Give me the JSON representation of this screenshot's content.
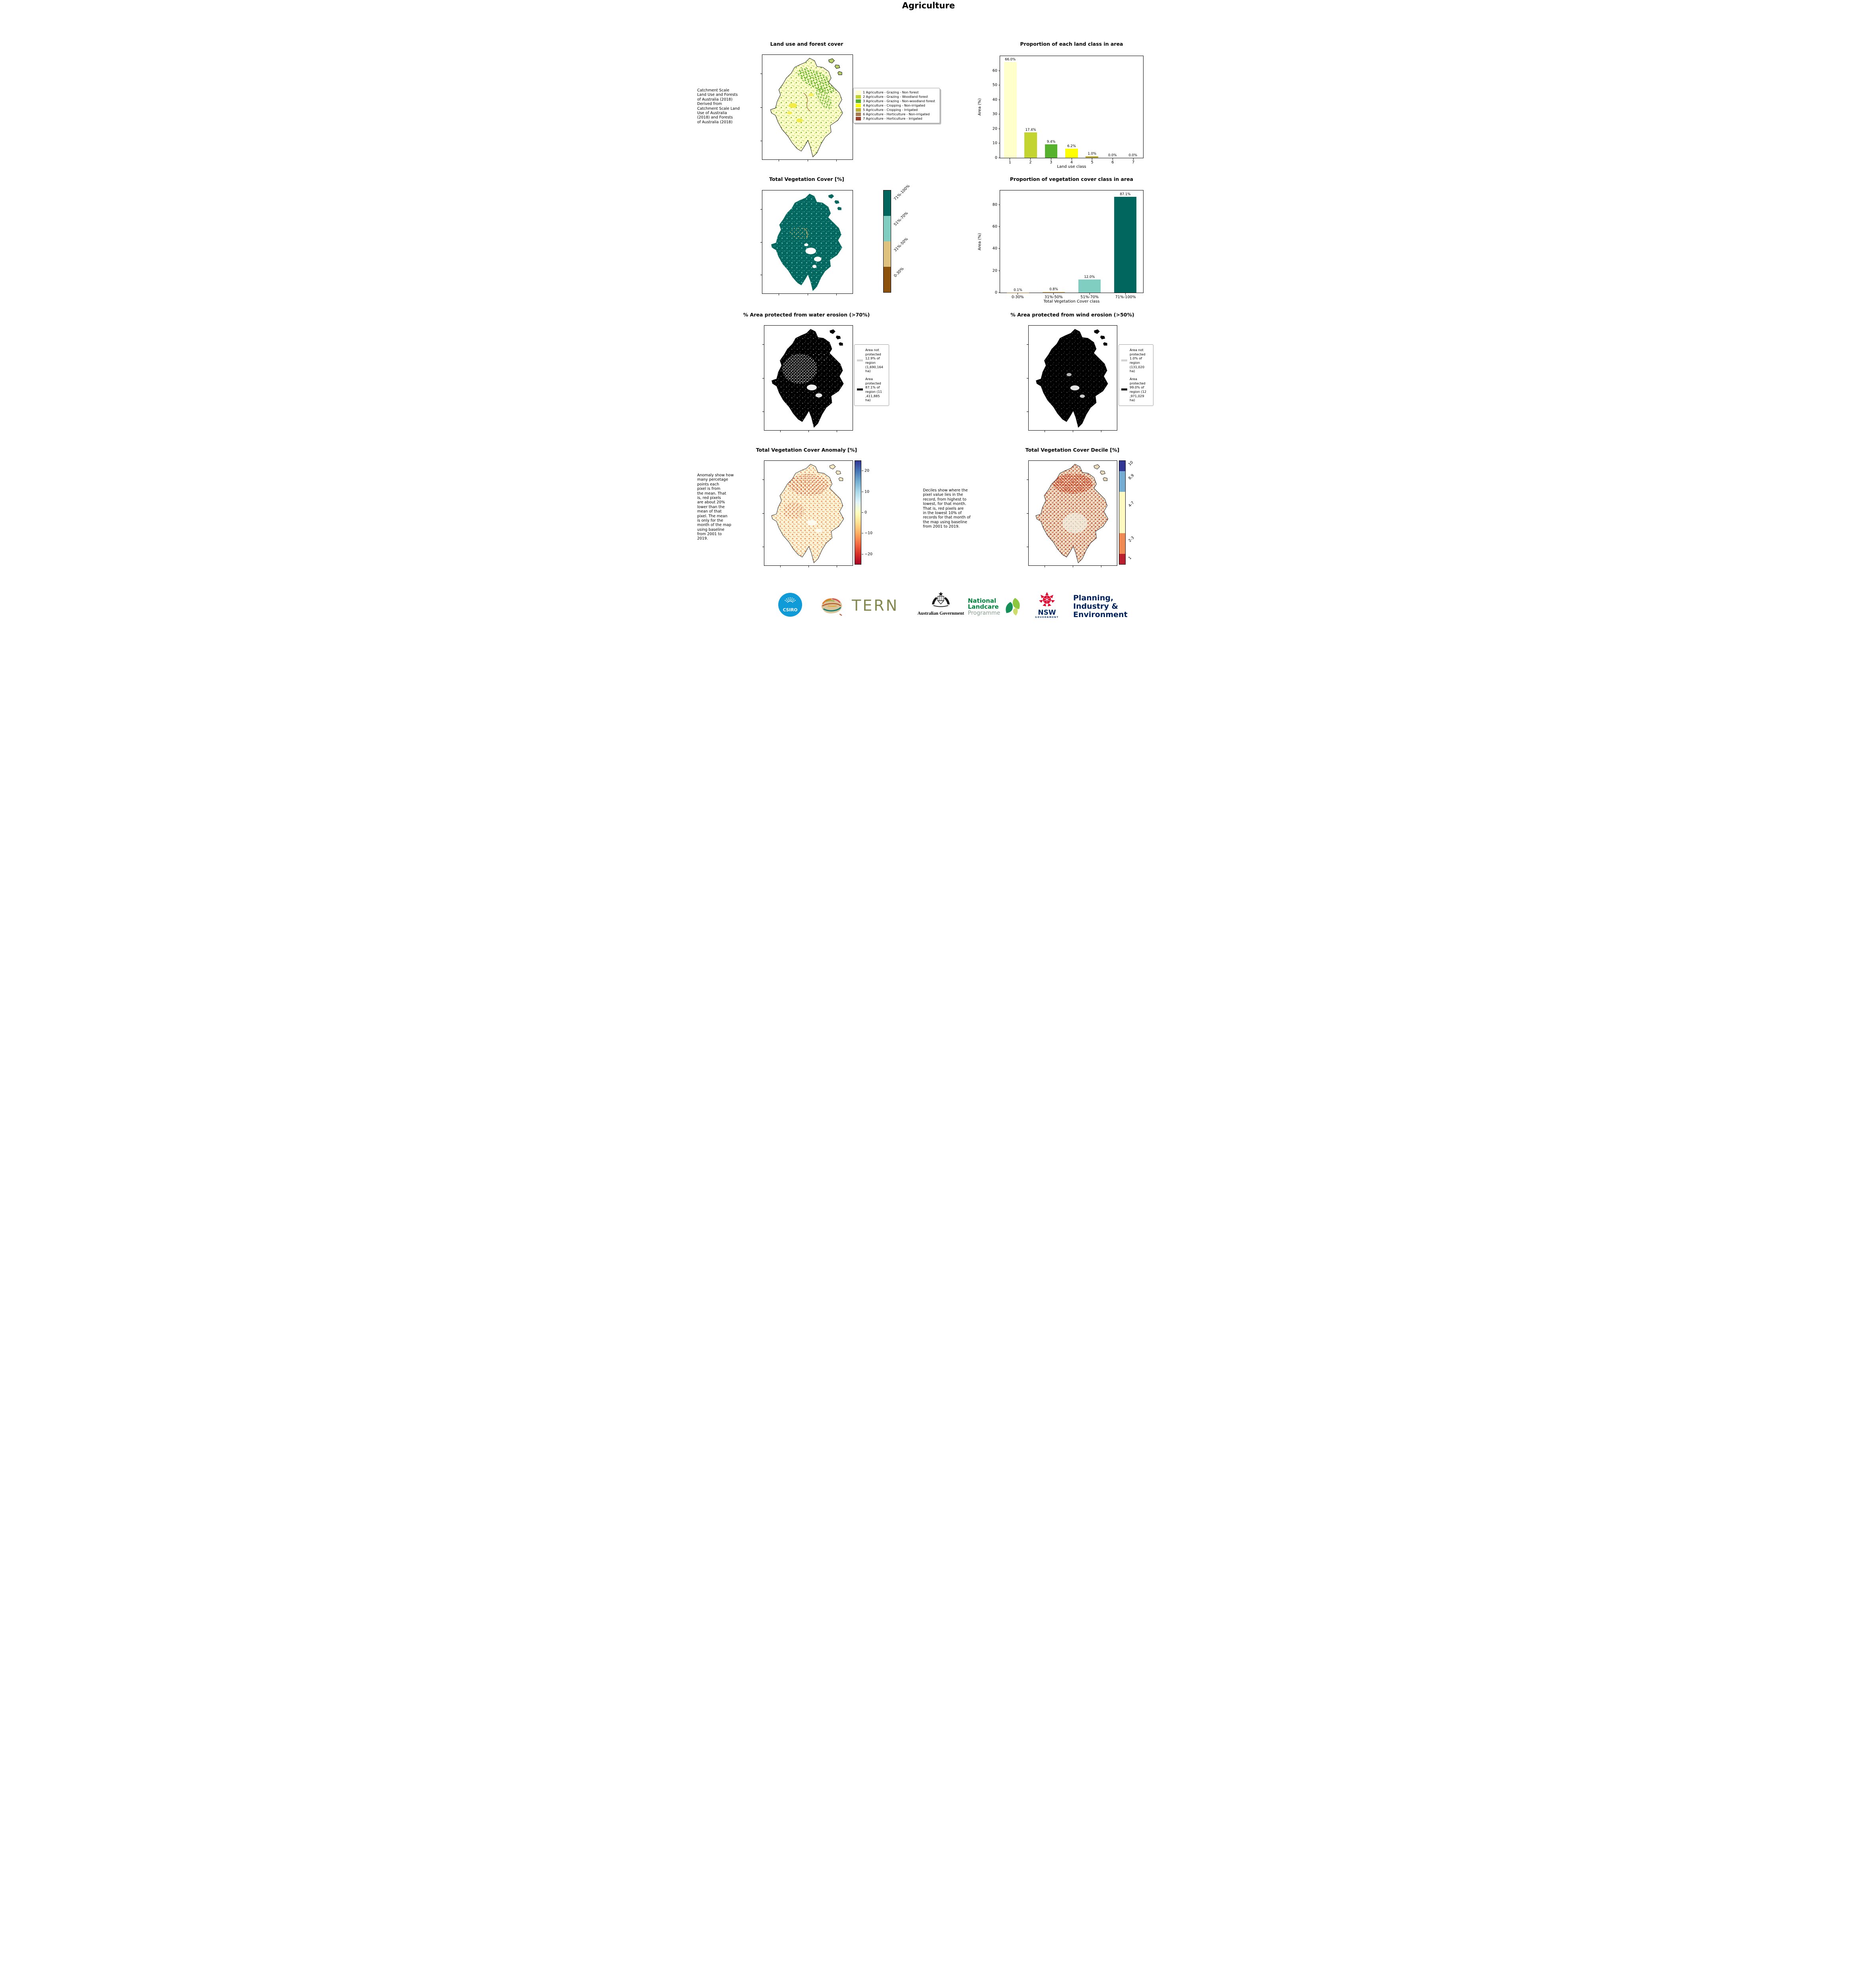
{
  "title": "Agriculture",
  "panels": {
    "land_use": {
      "title": "Land use and forest cover",
      "note": " Catchment Scale\nLand Use and Forests\nof Australia (2018)\nDerived from\nCatchment Scale Land\nUse of Australia\n(2018) and Forests\nof Australia (2018)",
      "legend": [
        {
          "label": "1 Agriculture - Grazing - Non forest",
          "color": "#ffffcc"
        },
        {
          "label": "2 Agriculture - Grazing - Woodland forest",
          "color": "#c3d32f"
        },
        {
          "label": "3 Agriculture - Grazing - Non-woodland forest",
          "color": "#56b12c"
        },
        {
          "label": "4 Agriculture - Cropping - Non-irrigated",
          "color": "#ffff00"
        },
        {
          "label": "5 Agriculture - Cropping - Irrigated",
          "color": "#bdb033"
        },
        {
          "label": "6 Agriculture - Horticulture - Non-irrigated",
          "color": "#a97c50"
        },
        {
          "label": "7 Agriculture - Horticulture - Irrigated",
          "color": "#99402a"
        }
      ]
    },
    "veg_cover": {
      "title": "Total Vegetation Cover [%]",
      "colorbar": [
        {
          "label": "71%-100%",
          "color": "#01665e",
          "span": 1
        },
        {
          "label": "51%-70%",
          "color": "#80cdc1",
          "span": 1
        },
        {
          "label": "31%-50%",
          "color": "#dfc27d",
          "span": 1
        },
        {
          "label": "0-30%",
          "color": "#8c510a",
          "span": 1
        }
      ]
    },
    "water_erosion": {
      "title": "% Area protected from water erosion (>70%)",
      "legend": [
        {
          "label": "Area not\nprotected\n12.9% of\nregion\n(1,690,164\nha)",
          "color": "#d3d3d3"
        },
        {
          "label": "Area\nprotected\n87.1% of\nregion (11\n,411,885\nha)",
          "color": "#000000"
        }
      ]
    },
    "wind_erosion": {
      "title": "% Area protected from wind erosion (>50%)",
      "legend": [
        {
          "label": "Area not\nprotected\n1.0% of\nregion\n(131,020\nha)",
          "color": "#d3d3d3"
        },
        {
          "label": "Area\nprotected\n99.0% of\nregion (12\n,971,029\nha)",
          "color": "#000000"
        }
      ]
    },
    "anomaly": {
      "title": "Total Vegetation Cover Anomaly [%]",
      "note": "Anomaly show how\nmany percetage\npoints each\npixel is from\nthe mean. That\nis, red pixels\nare about 20%\nlower than the\nmean of that\npixel. The mean\nis only for the\nmonth of the map\nusing baseline\nfrom 2001 to\n2019.",
      "colorbar": {
        "vmin": -25,
        "vmax": 25,
        "stops": [
          "#313695",
          "#4575b4",
          "#74add1",
          "#abd9e9",
          "#e0f3f8",
          "#ffffbf",
          "#fee090",
          "#fdae61",
          "#f46d43",
          "#d73027",
          "#a50026"
        ],
        "ticks": [
          {
            "value": 20,
            "label": "20"
          },
          {
            "value": 10,
            "label": "10"
          },
          {
            "value": 0,
            "label": "0"
          },
          {
            "value": -10,
            "label": "−10"
          },
          {
            "value": -20,
            "label": "−20"
          }
        ]
      }
    },
    "decile": {
      "title": "Total Vegetation Cover Decile [%]",
      "note": "Deciles show where the\npixel value lies in the\nrecord, from highest to\nlowest, for that month.\nThat is, red pixels are\nin the lowest 10% of\nrecords for that month of\nthe map using baseline\nfrom 2001 to 2019.",
      "colorbar": [
        {
          "label": "10",
          "color": "#313695",
          "span": 1
        },
        {
          "label": "8,9",
          "color": "#74add1",
          "span": 2
        },
        {
          "label": "4-7",
          "color": "#fffbc0",
          "span": 4
        },
        {
          "label": "2-3",
          "color": "#ef8a52",
          "span": 2
        },
        {
          "label": "1",
          "color": "#b91f2e",
          "span": 1
        }
      ]
    }
  },
  "chart_data": [
    {
      "id": "land_class",
      "type": "bar",
      "title": "Proportion of each land class in area",
      "categories": [
        "1",
        "2",
        "3",
        "4",
        "5",
        "6",
        "7"
      ],
      "values": [
        66.0,
        17.4,
        9.4,
        6.2,
        1.0,
        0.0,
        0.0
      ],
      "value_labels": [
        "66.0%",
        "17.4%",
        "9.4%",
        "6.2%",
        "1.0%",
        "0.0%",
        "0.0%"
      ],
      "colors": [
        "#ffffcc",
        "#c3d32f",
        "#56b12c",
        "#ffff00",
        "#bdb033",
        "#a97c50",
        "#99402a"
      ],
      "xlabel": "Land use class",
      "ylabel": "Area (%)",
      "ylim": [
        0,
        70
      ],
      "yticks": [
        0,
        10,
        20,
        30,
        40,
        50,
        60
      ],
      "grid": false,
      "legend_position": "none"
    },
    {
      "id": "veg_class",
      "type": "bar",
      "title": "Proportion of vegetation cover class in area",
      "categories": [
        "0-30%",
        "31%-50%",
        "51%-70%",
        "71%-100%"
      ],
      "values": [
        0.1,
        0.8,
        12.0,
        87.1
      ],
      "value_labels": [
        "0.1%",
        "0.8%",
        "12.0%",
        "87.1%"
      ],
      "colors": [
        "#8c510a",
        "#dfc27d",
        "#80cdc1",
        "#01665e"
      ],
      "xlabel": "Total Vegetation Cover class",
      "ylabel": "Area (%)",
      "ylim": [
        0,
        93
      ],
      "yticks": [
        0,
        20,
        40,
        60,
        80
      ],
      "grid": false,
      "legend_position": "none"
    }
  ],
  "footer": {
    "csiro": "CSIRO",
    "tern": "TERN",
    "aus_gov": "Australian Government",
    "landcare": [
      "National",
      "Landcare",
      "Programme"
    ],
    "nsw": "NSW",
    "nsw_sub": "GOVERNMENT",
    "planning": [
      "Planning,",
      "Industry &",
      "Environment"
    ]
  }
}
